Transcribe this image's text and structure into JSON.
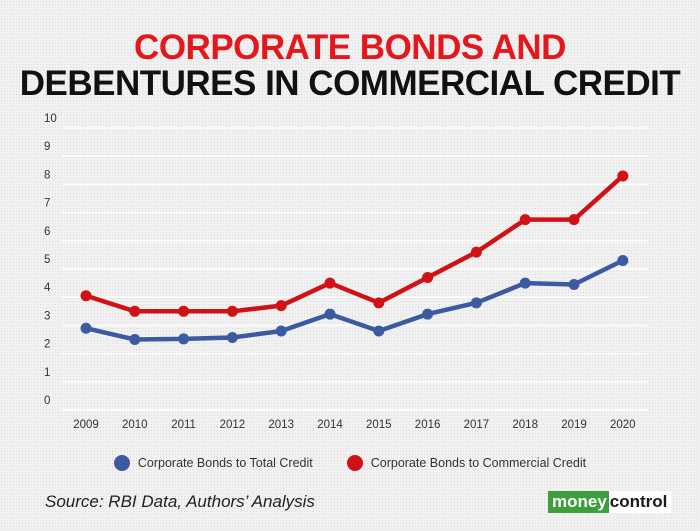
{
  "title_line1": "CORPORATE BONDS AND",
  "title_line2": "DEBENTURES IN COMMERCIAL CREDIT",
  "source": "Source: RBI Data, Authors’ Analysis",
  "logo": {
    "part1": "money",
    "part2": "control"
  },
  "colors": {
    "title_red": "#e3171c",
    "blue": "#3b5aa0",
    "red": "#d01217",
    "grid": "#ffffff"
  },
  "chart_data": {
    "type": "line",
    "x": [
      "2009",
      "2010",
      "2011",
      "2012",
      "2013",
      "2014",
      "2015",
      "2016",
      "2017",
      "2018",
      "2019",
      "2020"
    ],
    "ylim": [
      0,
      10
    ],
    "yticks": [
      "0",
      "1",
      "2",
      "3",
      "4",
      "5",
      "6",
      "7",
      "8",
      "9",
      "10"
    ],
    "grid": true,
    "legend": "bottom",
    "series": [
      {
        "name": "Corporate Bonds to Total Credit",
        "color": "#3b5aa0",
        "values": [
          2.9,
          2.5,
          2.52,
          2.57,
          2.8,
          3.4,
          2.8,
          3.4,
          3.8,
          4.5,
          4.45,
          5.3
        ]
      },
      {
        "name": "Corporate Bonds to Commercial Credit",
        "color": "#d01217",
        "values": [
          4.05,
          3.5,
          3.5,
          3.5,
          3.7,
          4.5,
          3.8,
          4.7,
          5.6,
          6.75,
          6.75,
          8.3
        ]
      }
    ]
  }
}
